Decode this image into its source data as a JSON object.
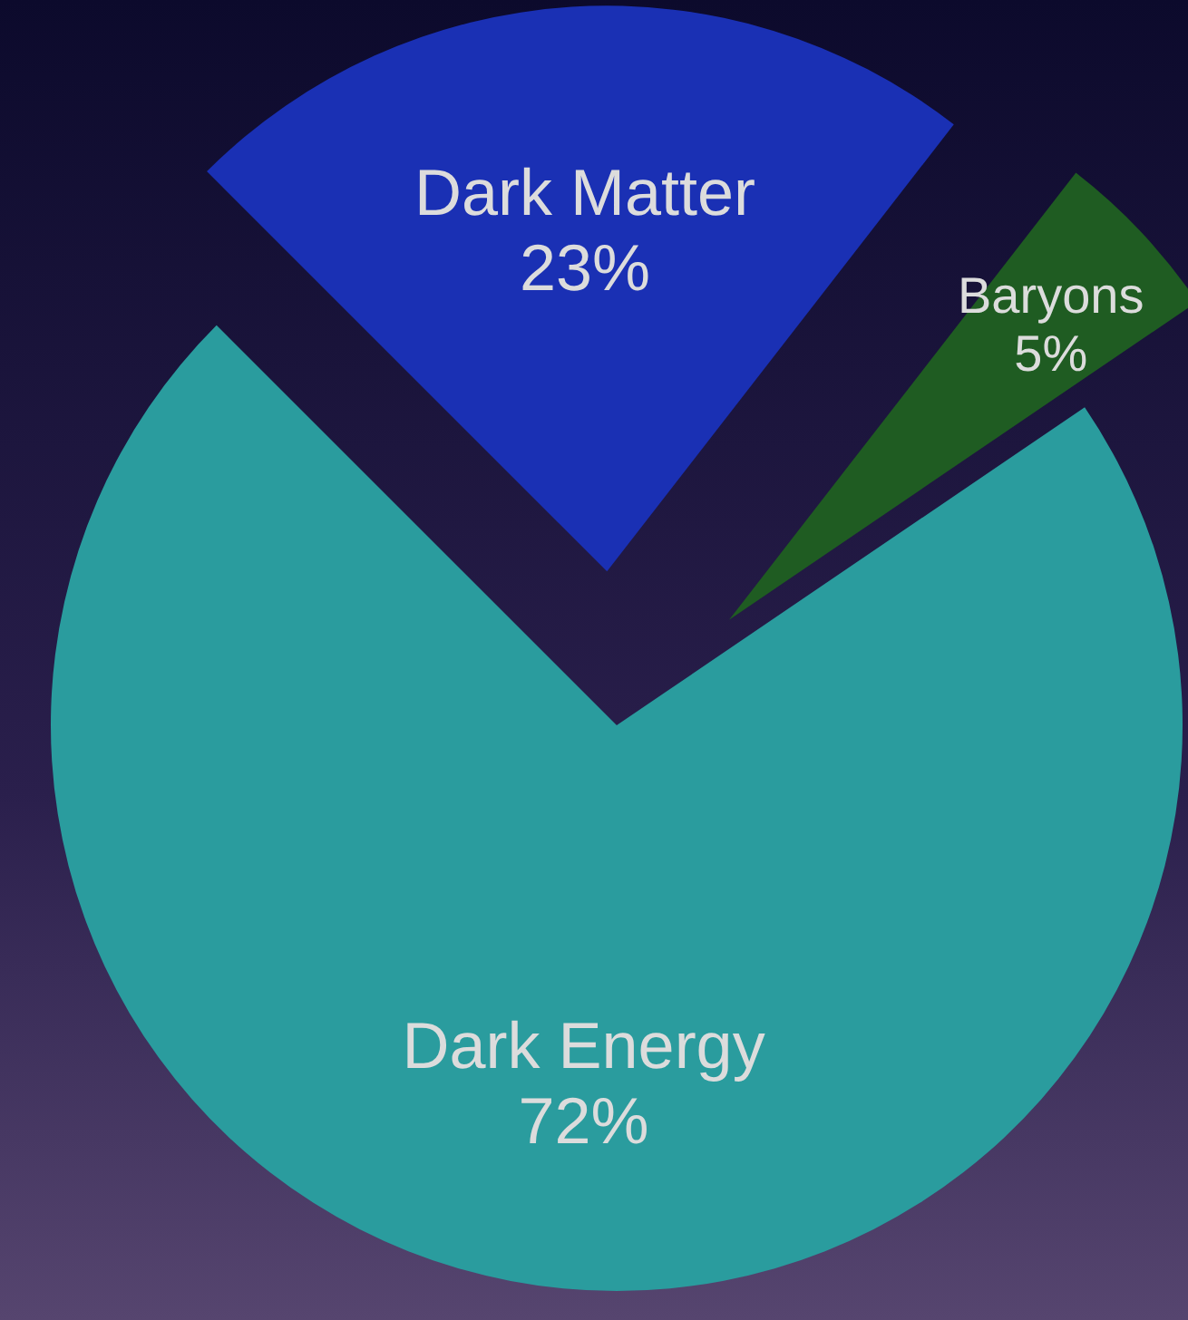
{
  "chart_data": {
    "type": "pie",
    "categories": [
      "Dark Matter",
      "Baryons",
      "Dark Energy"
    ],
    "values": [
      23,
      5,
      72
    ],
    "value_labels": [
      "23%",
      "5%",
      "72%"
    ],
    "colors": [
      "#1a30b4",
      "#1f5c22",
      "#2a9c9e"
    ]
  }
}
